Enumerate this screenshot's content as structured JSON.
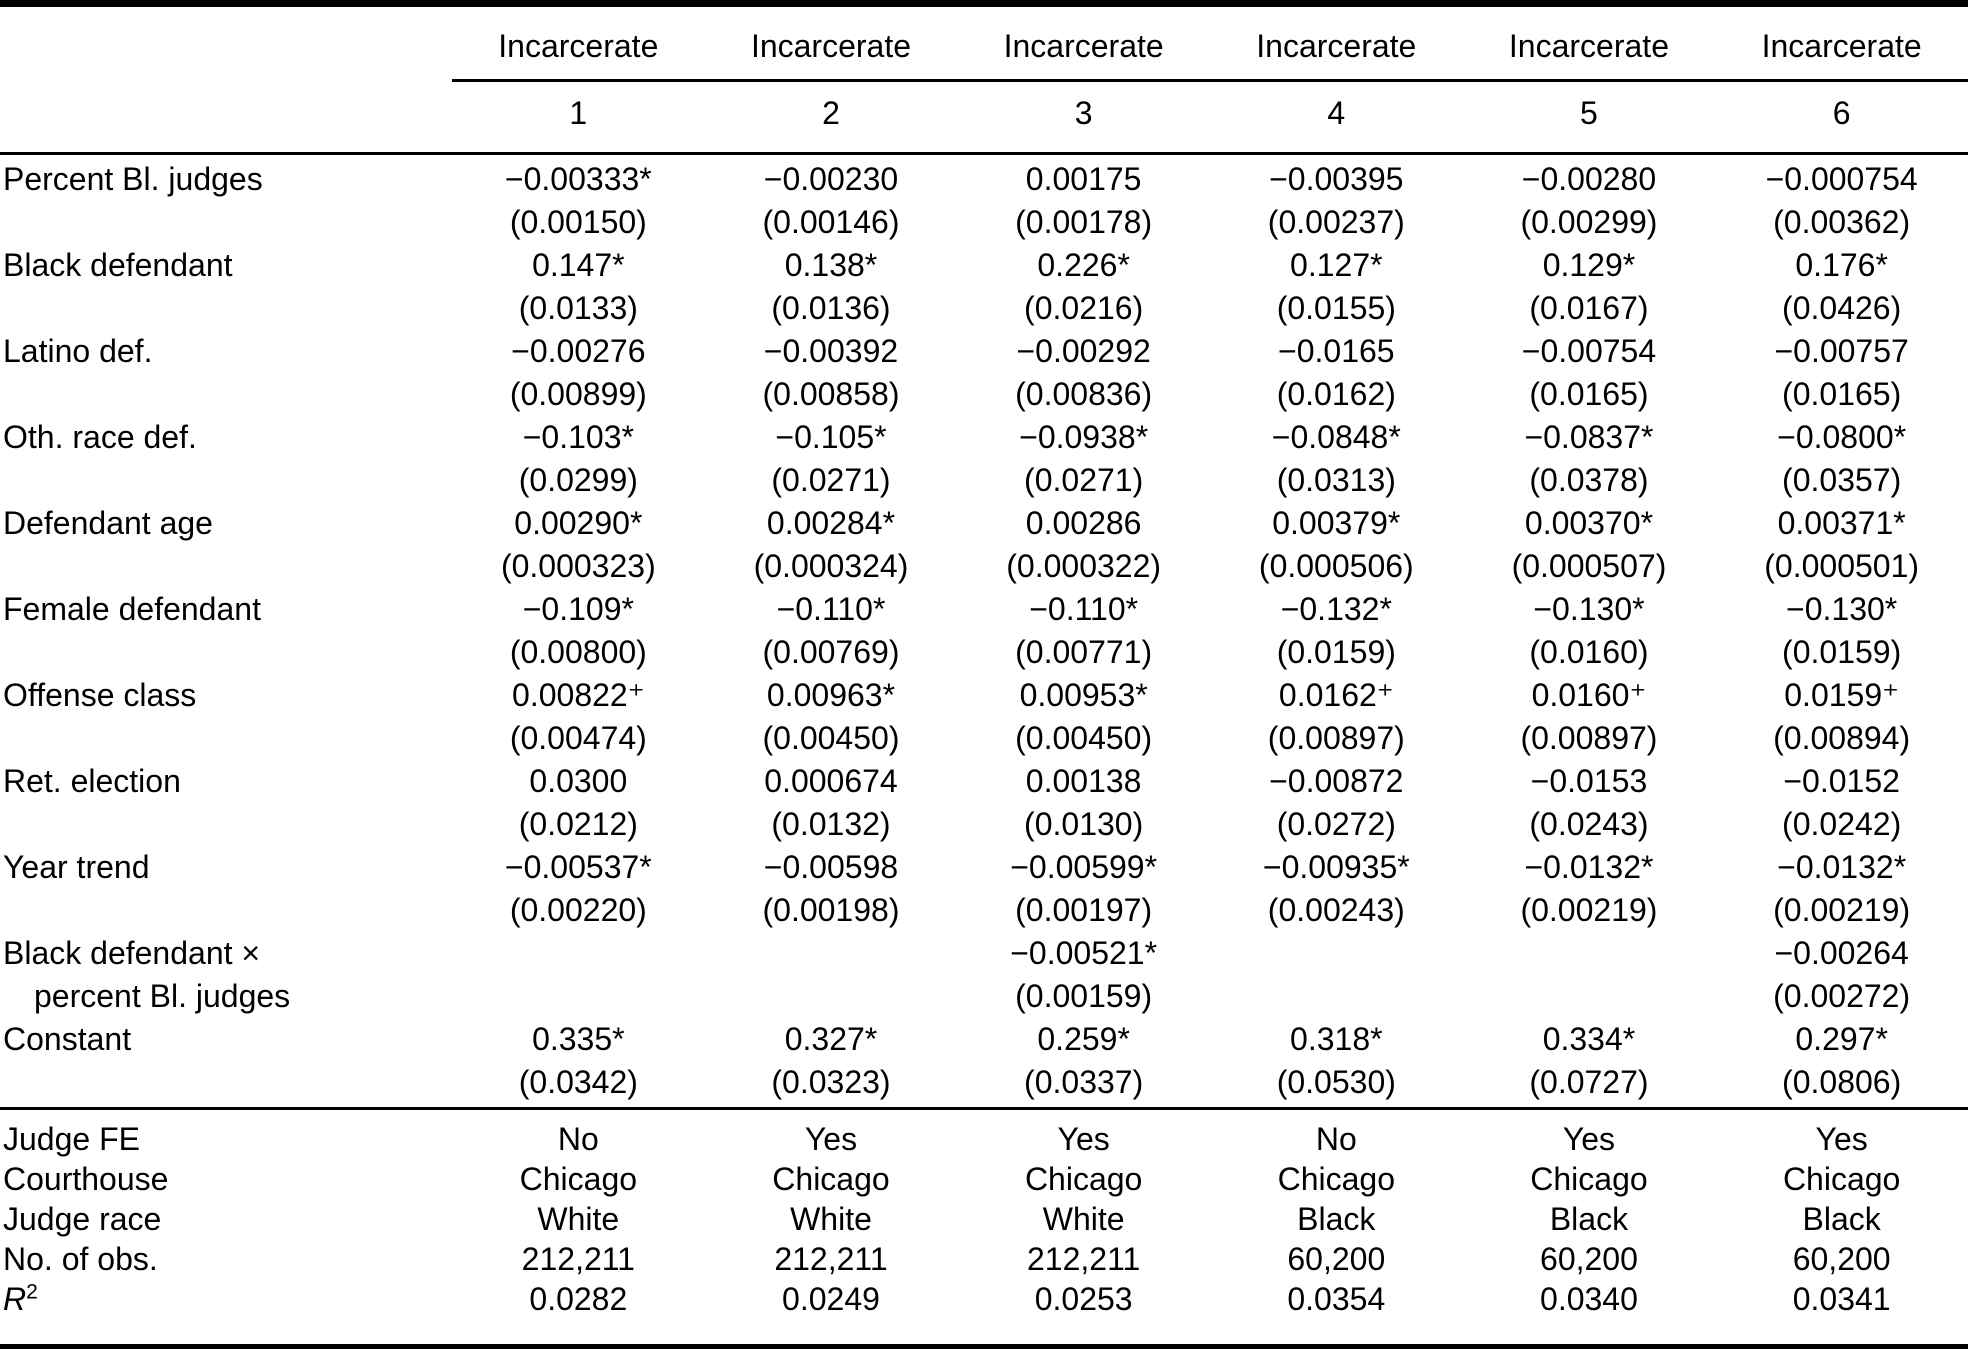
{
  "header": {
    "dep_label": "Incarcerate",
    "cols": [
      "1",
      "2",
      "3",
      "4",
      "5",
      "6"
    ]
  },
  "rows": [
    {
      "label": "Percent Bl. judges",
      "label2": "",
      "est": [
        "−0.00333*",
        "−0.00230",
        "0.00175",
        "−0.00395",
        "−0.00280",
        "−0.000754"
      ],
      "se": [
        "(0.00150)",
        "(0.00146)",
        "(0.00178)",
        "(0.00237)",
        "(0.00299)",
        "(0.00362)"
      ]
    },
    {
      "label": "Black defendant",
      "label2": "",
      "est": [
        "0.147*",
        "0.138*",
        "0.226*",
        "0.127*",
        "0.129*",
        "0.176*"
      ],
      "se": [
        "(0.0133)",
        "(0.0136)",
        "(0.0216)",
        "(0.0155)",
        "(0.0167)",
        "(0.0426)"
      ]
    },
    {
      "label": "Latino def.",
      "label2": "",
      "est": [
        "−0.00276",
        "−0.00392",
        "−0.00292",
        "−0.0165",
        "−0.00754",
        "−0.00757"
      ],
      "se": [
        "(0.00899)",
        "(0.00858)",
        "(0.00836)",
        "(0.0162)",
        "(0.0165)",
        "(0.0165)"
      ]
    },
    {
      "label": "Oth. race def.",
      "label2": "",
      "est": [
        "−0.103*",
        "−0.105*",
        "−0.0938*",
        "−0.0848*",
        "−0.0837*",
        "−0.0800*"
      ],
      "se": [
        "(0.0299)",
        "(0.0271)",
        "(0.0271)",
        "(0.0313)",
        "(0.0378)",
        "(0.0357)"
      ]
    },
    {
      "label": "Defendant age",
      "label2": "",
      "est": [
        "0.00290*",
        "0.00284*",
        "0.00286",
        "0.00379*",
        "0.00370*",
        "0.00371*"
      ],
      "se": [
        "(0.000323)",
        "(0.000324)",
        "(0.000322)",
        "(0.000506)",
        "(0.000507)",
        "(0.000501)"
      ]
    },
    {
      "label": "Female defendant",
      "label2": "",
      "est": [
        "−0.109*",
        "−0.110*",
        "−0.110*",
        "−0.132*",
        "−0.130*",
        "−0.130*"
      ],
      "se": [
        "(0.00800)",
        "(0.00769)",
        "(0.00771)",
        "(0.0159)",
        "(0.0160)",
        "(0.0159)"
      ]
    },
    {
      "label": "Offense class",
      "label2": "",
      "est": [
        "0.00822⁺",
        "0.00963*",
        "0.00953*",
        "0.0162⁺",
        "0.0160⁺",
        "0.0159⁺"
      ],
      "se": [
        "(0.00474)",
        "(0.00450)",
        "(0.00450)",
        "(0.00897)",
        "(0.00897)",
        "(0.00894)"
      ]
    },
    {
      "label": "Ret. election",
      "label2": "",
      "est": [
        "0.0300",
        "0.000674",
        "0.00138",
        "−0.00872",
        "−0.0153",
        "−0.0152"
      ],
      "se": [
        "(0.0212)",
        "(0.0132)",
        "(0.0130)",
        "(0.0272)",
        "(0.0243)",
        "(0.0242)"
      ]
    },
    {
      "label": "Year trend",
      "label2": "",
      "est": [
        "−0.00537*",
        "−0.00598",
        "−0.00599*",
        "−0.00935*",
        "−0.0132*",
        "−0.0132*"
      ],
      "se": [
        "(0.00220)",
        "(0.00198)",
        "(0.00197)",
        "(0.00243)",
        "(0.00219)",
        "(0.00219)"
      ]
    },
    {
      "label": "Black defendant ×",
      "label2": "percent Bl. judges",
      "est": [
        "",
        "",
        "−0.00521*",
        "",
        "",
        "−0.00264"
      ],
      "se": [
        "",
        "",
        "(0.00159)",
        "",
        "",
        "(0.00272)"
      ]
    },
    {
      "label": "Constant",
      "label2": "",
      "est": [
        "0.335*",
        "0.327*",
        "0.259*",
        "0.318*",
        "0.334*",
        "0.297*"
      ],
      "se": [
        "(0.0342)",
        "(0.0323)",
        "(0.0337)",
        "(0.0530)",
        "(0.0727)",
        "(0.0806)"
      ]
    }
  ],
  "stats": [
    {
      "label": "Judge FE",
      "values": [
        "No",
        "Yes",
        "Yes",
        "No",
        "Yes",
        "Yes"
      ]
    },
    {
      "label": "Courthouse",
      "values": [
        "Chicago",
        "Chicago",
        "Chicago",
        "Chicago",
        "Chicago",
        "Chicago"
      ]
    },
    {
      "label": "Judge race",
      "values": [
        "White",
        "White",
        "White",
        "Black",
        "Black",
        "Black"
      ]
    },
    {
      "label": "No. of obs.",
      "values": [
        "212,211",
        "212,211",
        "212,211",
        "60,200",
        "60,200",
        "60,200"
      ]
    },
    {
      "label": "R",
      "label_sup": "2",
      "values": [
        "0.0282",
        "0.0249",
        "0.0253",
        "0.0354",
        "0.0340",
        "0.0341"
      ]
    }
  ]
}
